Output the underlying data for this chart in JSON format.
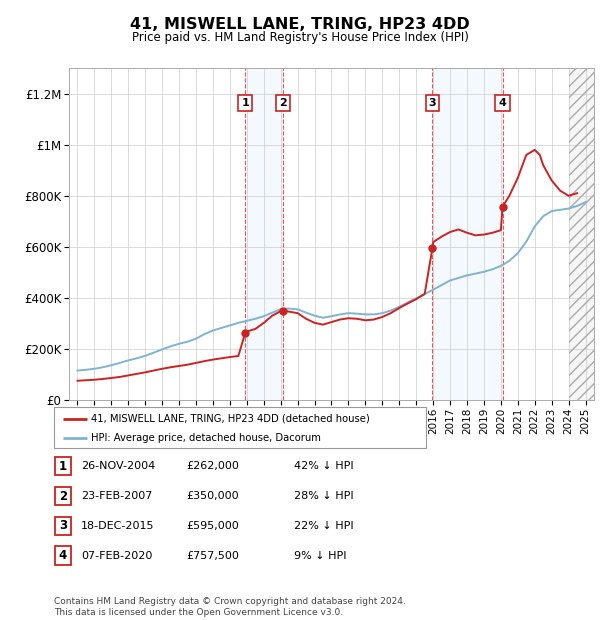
{
  "title": "41, MISWELL LANE, TRING, HP23 4DD",
  "subtitle": "Price paid vs. HM Land Registry's House Price Index (HPI)",
  "ylim": [
    0,
    1300000
  ],
  "yticks": [
    0,
    200000,
    400000,
    600000,
    800000,
    1000000,
    1200000
  ],
  "ytick_labels": [
    "£0",
    "£200K",
    "£400K",
    "£600K",
    "£800K",
    "£1M",
    "£1.2M"
  ],
  "xmin": 1994.5,
  "xmax": 2025.5,
  "grid_color": "#cccccc",
  "transactions": [
    {
      "num": 1,
      "date": "26-NOV-2004",
      "price": 262000,
      "hpi_pct": "42%",
      "x": 2004.9
    },
    {
      "num": 2,
      "date": "23-FEB-2007",
      "price": 350000,
      "hpi_pct": "28%",
      "x": 2007.15
    },
    {
      "num": 3,
      "date": "18-DEC-2015",
      "price": 595000,
      "hpi_pct": "22%",
      "x": 2015.96
    },
    {
      "num": 4,
      "date": "07-FEB-2020",
      "price": 757500,
      "hpi_pct": "9%",
      "x": 2020.1
    }
  ],
  "shade_color": "#ddeeff",
  "vline_color": "#ee3333",
  "legend_label_red": "41, MISWELL LANE, TRING, HP23 4DD (detached house)",
  "legend_label_blue": "HPI: Average price, detached house, Dacorum",
  "footer": "Contains HM Land Registry data © Crown copyright and database right 2024.\nThis data is licensed under the Open Government Licence v3.0.",
  "hpi_x": [
    1995.0,
    1995.5,
    1996.0,
    1996.5,
    1997.0,
    1997.5,
    1998.0,
    1998.5,
    1999.0,
    1999.5,
    2000.0,
    2000.5,
    2001.0,
    2001.5,
    2002.0,
    2002.5,
    2003.0,
    2003.5,
    2004.0,
    2004.5,
    2005.0,
    2005.5,
    2006.0,
    2006.5,
    2007.0,
    2007.5,
    2008.0,
    2008.5,
    2009.0,
    2009.5,
    2010.0,
    2010.5,
    2011.0,
    2011.5,
    2012.0,
    2012.5,
    2013.0,
    2013.5,
    2014.0,
    2014.5,
    2015.0,
    2015.5,
    2016.0,
    2016.5,
    2017.0,
    2017.5,
    2018.0,
    2018.5,
    2019.0,
    2019.5,
    2020.0,
    2020.5,
    2021.0,
    2021.5,
    2022.0,
    2022.5,
    2023.0,
    2023.5,
    2024.0,
    2024.5,
    2025.0
  ],
  "hpi_y": [
    115000,
    118000,
    122000,
    128000,
    136000,
    145000,
    155000,
    163000,
    173000,
    185000,
    198000,
    210000,
    220000,
    228000,
    240000,
    258000,
    272000,
    282000,
    292000,
    302000,
    310000,
    318000,
    328000,
    342000,
    356000,
    358000,
    355000,
    342000,
    330000,
    322000,
    328000,
    335000,
    340000,
    338000,
    335000,
    335000,
    340000,
    350000,
    365000,
    382000,
    398000,
    415000,
    432000,
    450000,
    468000,
    478000,
    488000,
    495000,
    502000,
    512000,
    525000,
    545000,
    575000,
    620000,
    680000,
    720000,
    740000,
    745000,
    750000,
    760000,
    775000
  ],
  "red_x": [
    1995.0,
    1995.5,
    1996.0,
    1996.5,
    1997.0,
    1997.5,
    1998.0,
    1998.5,
    1999.0,
    1999.5,
    2000.0,
    2000.5,
    2001.0,
    2001.5,
    2002.0,
    2002.5,
    2003.0,
    2003.5,
    2004.0,
    2004.5,
    2004.9,
    2005.0,
    2005.5,
    2006.0,
    2006.5,
    2007.0,
    2007.15,
    2008.0,
    2008.5,
    2009.0,
    2009.5,
    2010.0,
    2010.5,
    2011.0,
    2011.5,
    2012.0,
    2012.5,
    2013.0,
    2013.5,
    2014.0,
    2014.5,
    2015.0,
    2015.5,
    2015.96,
    2016.0,
    2016.5,
    2017.0,
    2017.5,
    2018.0,
    2018.5,
    2019.0,
    2019.5,
    2020.0,
    2020.1,
    2020.5,
    2021.0,
    2021.5,
    2022.0,
    2022.3,
    2022.5,
    2023.0,
    2023.5,
    2024.0,
    2024.5
  ],
  "red_y": [
    75000,
    77000,
    79000,
    82000,
    86000,
    90000,
    96000,
    102000,
    108000,
    115000,
    122000,
    128000,
    133000,
    138000,
    145000,
    152000,
    158000,
    163000,
    168000,
    172000,
    262000,
    268000,
    278000,
    302000,
    330000,
    348000,
    350000,
    340000,
    318000,
    302000,
    295000,
    305000,
    315000,
    320000,
    318000,
    312000,
    315000,
    325000,
    340000,
    360000,
    378000,
    395000,
    415000,
    595000,
    618000,
    640000,
    658000,
    668000,
    655000,
    645000,
    648000,
    655000,
    665000,
    757500,
    800000,
    870000,
    960000,
    980000,
    960000,
    920000,
    860000,
    820000,
    800000,
    810000
  ]
}
